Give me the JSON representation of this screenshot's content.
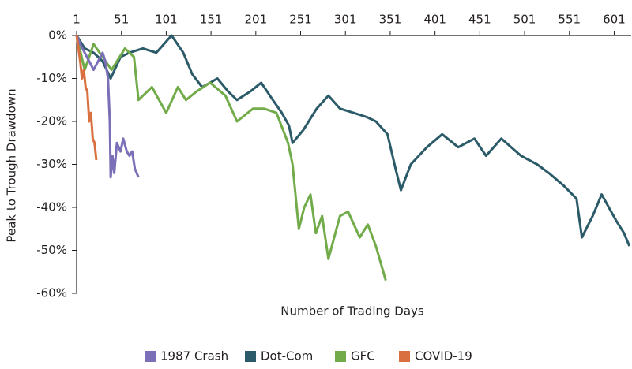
{
  "chart_data": {
    "type": "line",
    "x_label": "Number of Trading Days",
    "y_label": "Peak to Trough Drawdown",
    "xlim": [
      1,
      620
    ],
    "xticks": [
      1,
      51,
      101,
      151,
      201,
      251,
      301,
      351,
      401,
      451,
      501,
      551,
      601
    ],
    "x_axis_position": "top",
    "ylim": [
      -60,
      0
    ],
    "yticks": [
      {
        "value": 0,
        "label": "0%"
      },
      {
        "value": -10,
        "label": "-10%"
      },
      {
        "value": -20,
        "label": "-20%"
      },
      {
        "value": -30,
        "label": "-30%"
      },
      {
        "value": -40,
        "label": "-40%"
      },
      {
        "value": -50,
        "label": "-50%"
      },
      {
        "value": -60,
        "label": "-60%"
      }
    ],
    "grid": false,
    "legend": "bottom",
    "series": [
      {
        "name": "1987 Crash",
        "color": "#7b6fb8",
        "x": [
          1,
          5,
          10,
          15,
          20,
          25,
          30,
          33,
          36,
          38,
          39,
          41,
          43,
          46,
          50,
          53,
          57,
          60,
          63,
          66,
          70
        ],
        "values": [
          0,
          -2,
          -4,
          -6,
          -8,
          -6,
          -4,
          -6,
          -10,
          -20,
          -33,
          -28,
          -32,
          -25,
          -27,
          -24,
          -27,
          -28,
          -27,
          -31,
          -33
        ]
      },
      {
        "name": "Dot-Com",
        "color": "#2b5a68",
        "x": [
          1,
          10,
          20,
          30,
          39,
          50,
          60,
          75,
          90,
          107,
          120,
          130,
          141,
          150,
          158,
          170,
          180,
          195,
          207,
          220,
          230,
          238,
          242,
          254,
          269,
          282,
          295,
          310,
          325,
          335,
          348,
          357,
          363,
          374,
          392,
          409,
          427,
          445,
          458,
          475,
          497,
          515,
          528,
          545,
          559,
          565,
          577,
          587,
          603,
          612,
          618
        ],
        "values": [
          0,
          -3,
          -4,
          -6,
          -10,
          -5,
          -4,
          -3,
          -4,
          0,
          -4,
          -9,
          -12,
          -11,
          -10,
          -13,
          -15,
          -13,
          -11,
          -15,
          -18,
          -21,
          -25,
          -22,
          -17,
          -14,
          -17,
          -18,
          -19,
          -20,
          -23,
          -31,
          -36,
          -30,
          -26,
          -23,
          -26,
          -24,
          -28,
          -24,
          -28,
          -30,
          -32,
          -35,
          -38,
          -47,
          -42,
          -37,
          -43,
          -46,
          -49
        ]
      },
      {
        "name": "GFC",
        "color": "#72ab4a",
        "x": [
          1,
          10,
          20,
          30,
          40,
          55,
          65,
          70,
          85,
          101,
          114,
          123,
          135,
          150,
          167,
          180,
          198,
          210,
          224,
          237,
          242,
          249,
          255,
          262,
          268,
          275,
          282,
          295,
          304,
          317,
          326,
          335,
          346
        ],
        "values": [
          0,
          -8,
          -2,
          -5,
          -8,
          -3,
          -5,
          -15,
          -12,
          -18,
          -12,
          -15,
          -13,
          -11,
          -14,
          -20,
          -17,
          -17,
          -18,
          -25,
          -30,
          -45,
          -40,
          -37,
          -46,
          -42,
          -52,
          -42,
          -41,
          -47,
          -44,
          -49,
          -57
        ]
      },
      {
        "name": "COVID-19",
        "color": "#d8703f",
        "x": [
          1,
          3,
          5,
          7,
          9,
          11,
          13,
          15,
          17,
          19,
          21,
          23
        ],
        "values": [
          0,
          -3,
          -6,
          -10,
          -8,
          -12,
          -13,
          -20,
          -18,
          -24,
          -25,
          -29
        ]
      }
    ]
  }
}
